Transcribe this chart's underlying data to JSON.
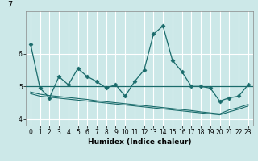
{
  "title": "7",
  "xlabel": "Humidex (Indice chaleur)",
  "xlim": [
    -0.5,
    23.5
  ],
  "ylim": [
    3.8,
    7.3
  ],
  "yticks": [
    4,
    5,
    6
  ],
  "xticks": [
    0,
    1,
    2,
    3,
    4,
    5,
    6,
    7,
    8,
    9,
    10,
    11,
    12,
    13,
    14,
    15,
    16,
    17,
    18,
    19,
    20,
    21,
    22,
    23
  ],
  "bg_color": "#cce8e8",
  "line_color": "#1a6b6b",
  "grid_color": "#ffffff",
  "jagged_x": [
    0,
    1,
    2,
    3,
    4,
    5,
    6,
    7,
    8,
    9,
    10,
    11,
    12,
    13,
    14,
    15,
    16,
    17,
    18,
    19,
    20,
    21,
    22,
    23
  ],
  "jagged_y": [
    6.3,
    4.95,
    4.65,
    5.3,
    5.05,
    5.55,
    5.3,
    5.15,
    4.95,
    5.05,
    4.7,
    5.15,
    5.5,
    6.6,
    6.85,
    5.8,
    5.45,
    5.0,
    5.0,
    4.95,
    4.55,
    4.65,
    4.7,
    5.05
  ],
  "flat_y": 5.0,
  "lower1_y": [
    4.78,
    4.7,
    4.67,
    4.64,
    4.61,
    4.58,
    4.55,
    4.52,
    4.49,
    4.46,
    4.43,
    4.4,
    4.37,
    4.34,
    4.31,
    4.28,
    4.25,
    4.22,
    4.19,
    4.16,
    4.13,
    4.22,
    4.3,
    4.4
  ],
  "lower2_y": [
    4.83,
    4.76,
    4.72,
    4.69,
    4.66,
    4.63,
    4.6,
    4.56,
    4.53,
    4.5,
    4.47,
    4.44,
    4.41,
    4.38,
    4.35,
    4.32,
    4.29,
    4.26,
    4.22,
    4.19,
    4.16,
    4.28,
    4.35,
    4.45
  ]
}
